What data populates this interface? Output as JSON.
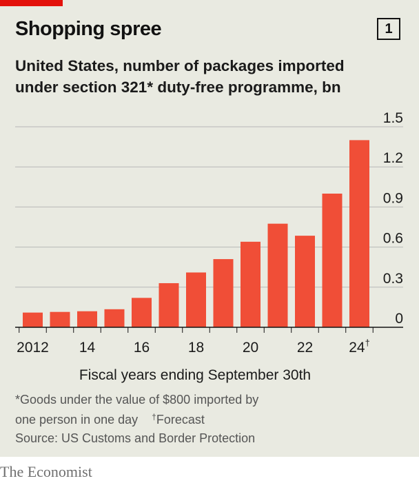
{
  "header": {
    "title": "Shopping spree",
    "chart_number": "1"
  },
  "chart_data": {
    "type": "bar",
    "title": "Shopping spree",
    "subtitle_line1": "United States, number of packages imported",
    "subtitle_line2": "under section 321* duty-free programme, bn",
    "categories": [
      "2012",
      "2013",
      "2014",
      "2015",
      "2016",
      "2017",
      "2018",
      "2019",
      "2020",
      "2021",
      "2022",
      "2023",
      "2024"
    ],
    "values": [
      0.11,
      0.115,
      0.12,
      0.135,
      0.22,
      0.33,
      0.41,
      0.51,
      0.64,
      0.775,
      0.685,
      1.0,
      1.4
    ],
    "x_tick_labels": [
      {
        "index": 0,
        "label": "2012"
      },
      {
        "index": 2,
        "label": "14"
      },
      {
        "index": 4,
        "label": "16"
      },
      {
        "index": 6,
        "label": "18"
      },
      {
        "index": 8,
        "label": "20"
      },
      {
        "index": 10,
        "label": "22"
      },
      {
        "index": 12,
        "label": "24",
        "suffix": "†"
      }
    ],
    "y_ticks": [
      {
        "value": 0,
        "label": "0"
      },
      {
        "value": 0.3,
        "label": "0.3"
      },
      {
        "value": 0.6,
        "label": "0.6"
      },
      {
        "value": 0.9,
        "label": "0.9"
      },
      {
        "value": 1.2,
        "label": "1.2"
      },
      {
        "value": 1.5,
        "label": "1.5"
      }
    ],
    "ylim": [
      0,
      1.5
    ],
    "xlabel": "Fiscal years ending September 30th",
    "ylabel": "",
    "grid": true,
    "y_axis_position": "right",
    "bar_color": "#f04e37"
  },
  "footnotes": {
    "note_line1": "*Goods under the value of $800 imported by",
    "note_line2": "one person in one day",
    "dagger": "†",
    "forecast": "Forecast",
    "source": "Source: US Customs and Border Protection"
  },
  "brand": "The Economist",
  "colors": {
    "panel": "#e9eae1",
    "accent": "#e3120b",
    "bar": "#f04e37",
    "grid": "#b7b7b7"
  }
}
